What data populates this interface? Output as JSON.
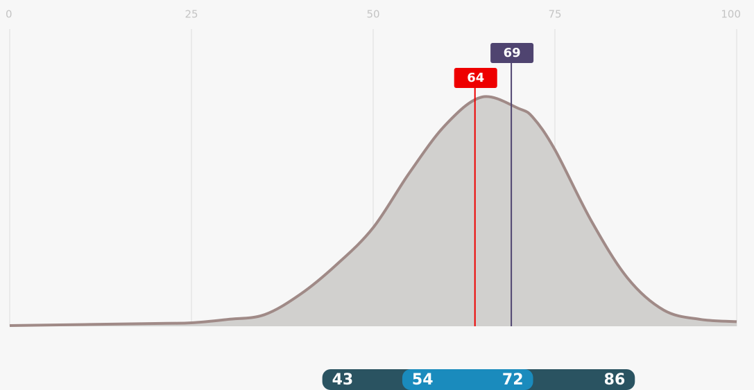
{
  "chart_data": {
    "type": "density",
    "x": [
      0,
      20,
      25,
      30,
      35,
      40,
      45,
      50,
      55,
      60,
      65,
      70,
      72,
      75,
      80,
      85,
      90,
      95,
      100
    ],
    "values": [
      0.3,
      1.2,
      1.5,
      3,
      5,
      14,
      27,
      43,
      67,
      88,
      100,
      95,
      91,
      77,
      46,
      21,
      7,
      3,
      2
    ],
    "color": "#a08a87",
    "fill": "#d1d0ce",
    "xlim": [
      0,
      100
    ],
    "xticks": [
      0,
      25,
      50,
      75,
      100
    ],
    "ylim": [
      0,
      100
    ],
    "grid": true,
    "markers": [
      {
        "value": 64,
        "color": "#ee0000"
      },
      {
        "value": 69,
        "color": "#4f4470"
      }
    ],
    "band": {
      "values": [
        43,
        54,
        72,
        86
      ],
      "outer_color": "#2a5361",
      "inner_color": "#1a8bbd"
    }
  }
}
